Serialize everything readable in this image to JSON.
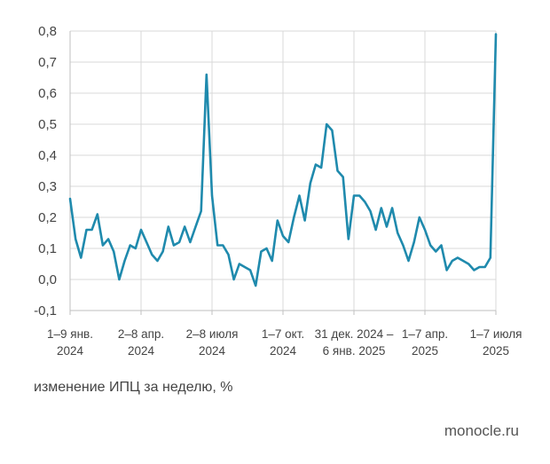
{
  "caption": "изменение ИПЦ за неделю, %",
  "source": "monocle.ru",
  "colors": {
    "line": "#1f8aad",
    "grid": "#d9d9d9",
    "axis": "#bfbfbf"
  },
  "chart_data": {
    "type": "line",
    "title": "",
    "xlabel": "",
    "ylabel": "изменение ИПЦ за неделю, %",
    "ylim": [
      -0.1,
      0.8
    ],
    "yticks": [
      "-0,1",
      "0,0",
      "0,1",
      "0,2",
      "0,3",
      "0,4",
      "0,5",
      "0,6",
      "0,7",
      "0,8"
    ],
    "x_tick_labels": [
      {
        "index": 0,
        "lines": [
          "1–9 янв.",
          "2024"
        ]
      },
      {
        "index": 13,
        "lines": [
          "2–8 апр.",
          "2024"
        ]
      },
      {
        "index": 26,
        "lines": [
          "2–8 июля",
          "2024"
        ]
      },
      {
        "index": 39,
        "lines": [
          "1–7 окт.",
          "2024"
        ]
      },
      {
        "index": 52,
        "lines": [
          "31 дек. 2024 –",
          "6 янв. 2025"
        ]
      },
      {
        "index": 65,
        "lines": [
          "1–7 апр.",
          "2025"
        ]
      },
      {
        "index": 78,
        "lines": [
          "1–7 июля",
          "2025"
        ]
      }
    ],
    "series": [
      {
        "values": [
          0.26,
          0.13,
          0.07,
          0.16,
          0.16,
          0.21,
          0.11,
          0.13,
          0.09,
          0.0,
          0.06,
          0.11,
          0.1,
          0.16,
          0.12,
          0.08,
          0.06,
          0.09,
          0.17,
          0.11,
          0.12,
          0.17,
          0.12,
          0.17,
          0.22,
          0.66,
          0.27,
          0.11,
          0.11,
          0.08,
          0.0,
          0.05,
          0.04,
          0.03,
          -0.02,
          0.09,
          0.1,
          0.06,
          0.19,
          0.14,
          0.12,
          0.2,
          0.27,
          0.19,
          0.31,
          0.37,
          0.36,
          0.5,
          0.48,
          0.35,
          0.33,
          0.13,
          0.27,
          0.27,
          0.25,
          0.22,
          0.16,
          0.23,
          0.17,
          0.23,
          0.15,
          0.11,
          0.06,
          0.12,
          0.2,
          0.16,
          0.11,
          0.09,
          0.11,
          0.03,
          0.06,
          0.07,
          0.06,
          0.05,
          0.03,
          0.04,
          0.04,
          0.07,
          0.79
        ]
      }
    ],
    "grid": true,
    "legend": "none"
  }
}
